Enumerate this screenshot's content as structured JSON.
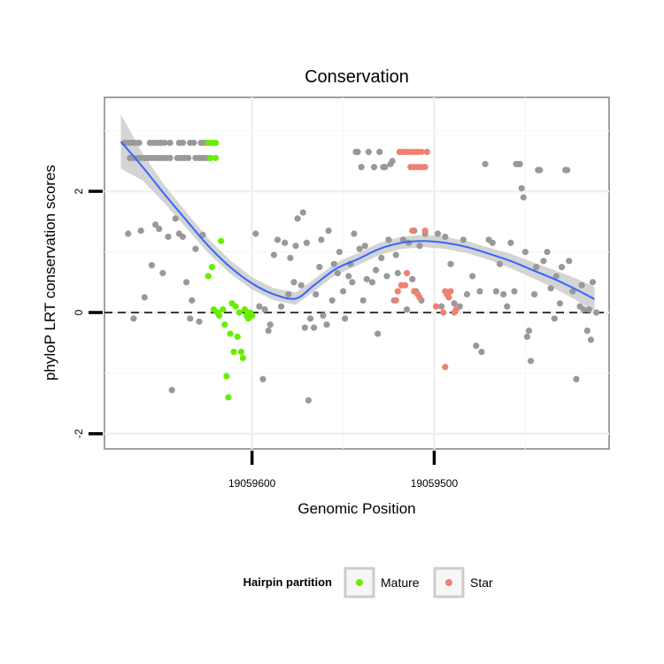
{
  "chart_data": {
    "type": "scatter",
    "title": "Conservation",
    "xlabel": "Genomic Position",
    "ylabel": "phyloP LRT conservation scores",
    "x_reversed": true,
    "xlim": [
      19059681,
      19059404
    ],
    "ylim": [
      -2.25,
      3.55
    ],
    "x_ticks": [
      19059600,
      19059500
    ],
    "x_tick_labels": [
      "19059600",
      "19059500"
    ],
    "y_ticks": [
      -2,
      0,
      2
    ],
    "y_tick_labels": [
      "-2",
      "0",
      "2"
    ],
    "reference_line": {
      "y": 0,
      "style": "dashed"
    },
    "grid": true,
    "legend": {
      "title": "Hairpin partition",
      "placement": "bottom",
      "entries": [
        {
          "label": "Mature",
          "color": "#66ee00"
        },
        {
          "label": "Star",
          "color": "#f08070"
        }
      ]
    },
    "colors": {
      "other": "#999999",
      "Mature": "#66ee00",
      "Star": "#f08070",
      "trend": "#3366ff",
      "band": "#cccccc"
    },
    "series": [
      {
        "group": "other",
        "points": [
          [
            19059670,
            2.8
          ],
          [
            19059668,
            2.8
          ],
          [
            19059666,
            2.8
          ],
          [
            19059664,
            2.8
          ],
          [
            19059662,
            2.8
          ],
          [
            19059656,
            2.8
          ],
          [
            19059654,
            2.8
          ],
          [
            19059652,
            2.8
          ],
          [
            19059650,
            2.8
          ],
          [
            19059648,
            2.8
          ],
          [
            19059645,
            2.8
          ],
          [
            19059640,
            2.8
          ],
          [
            19059638,
            2.8
          ],
          [
            19059634,
            2.8
          ],
          [
            19059632,
            2.8
          ],
          [
            19059628,
            2.8
          ],
          [
            19059626,
            2.8
          ],
          [
            19059624,
            2.8
          ],
          [
            19059667,
            2.55
          ],
          [
            19059665,
            2.55
          ],
          [
            19059663,
            2.55
          ],
          [
            19059661,
            2.55
          ],
          [
            19059659,
            2.55
          ],
          [
            19059657,
            2.55
          ],
          [
            19059655,
            2.55
          ],
          [
            19059653,
            2.55
          ],
          [
            19059651,
            2.55
          ],
          [
            19059649,
            2.55
          ],
          [
            19059647,
            2.55
          ],
          [
            19059645,
            2.55
          ],
          [
            19059641,
            2.55
          ],
          [
            19059639,
            2.55
          ],
          [
            19059637,
            2.55
          ],
          [
            19059635,
            2.55
          ],
          [
            19059631,
            2.55
          ],
          [
            19059629,
            2.55
          ],
          [
            19059627,
            2.55
          ],
          [
            19059625,
            2.55
          ],
          [
            19059623,
            2.55
          ],
          [
            19059668,
            1.3
          ],
          [
            19059665,
            -0.1
          ],
          [
            19059661,
            1.35
          ],
          [
            19059659,
            0.25
          ],
          [
            19059655,
            0.78
          ],
          [
            19059653,
            1.45
          ],
          [
            19059651,
            1.38
          ],
          [
            19059649,
            0.65
          ],
          [
            19059646,
            1.25
          ],
          [
            19059644,
            -1.28
          ],
          [
            19059642,
            1.55
          ],
          [
            19059640,
            1.3
          ],
          [
            19059638,
            1.25
          ],
          [
            19059636,
            0.5
          ],
          [
            19059634,
            -0.1
          ],
          [
            19059633,
            0.2
          ],
          [
            19059631,
            1.05
          ],
          [
            19059629,
            -0.15
          ],
          [
            19059627,
            1.28
          ],
          [
            19059598,
            1.3
          ],
          [
            19059596,
            0.1
          ],
          [
            19059594,
            -1.1
          ],
          [
            19059593,
            0.05
          ],
          [
            19059591,
            -0.3
          ],
          [
            19059590,
            -0.2
          ],
          [
            19059588,
            0.95
          ],
          [
            19059586,
            1.2
          ],
          [
            19059584,
            0.1
          ],
          [
            19059582,
            1.15
          ],
          [
            19059580,
            0.3
          ],
          [
            19059579,
            0.9
          ],
          [
            19059577,
            0.5
          ],
          [
            19059576,
            1.1
          ],
          [
            19059575,
            1.55
          ],
          [
            19059573,
            0.45
          ],
          [
            19059572,
            1.65
          ],
          [
            19059571,
            -0.25
          ],
          [
            19059570,
            1.15
          ],
          [
            19059569,
            -1.45
          ],
          [
            19059568,
            -0.1
          ],
          [
            19059566,
            -0.25
          ],
          [
            19059565,
            0.3
          ],
          [
            19059563,
            0.75
          ],
          [
            19059562,
            1.2
          ],
          [
            19059561,
            -0.05
          ],
          [
            19059559,
            -0.2
          ],
          [
            19059558,
            1.35
          ],
          [
            19059556,
            0.2
          ],
          [
            19059555,
            0.8
          ],
          [
            19059553,
            0.65
          ],
          [
            19059552,
            1.0
          ],
          [
            19059550,
            0.35
          ],
          [
            19059549,
            -0.1
          ],
          [
            19059547,
            0.6
          ],
          [
            19059546,
            0.8
          ],
          [
            19059545,
            0.5
          ],
          [
            19059544,
            1.3
          ],
          [
            19059543,
            2.65
          ],
          [
            19059542,
            2.65
          ],
          [
            19059541,
            1.05
          ],
          [
            19059540,
            2.4
          ],
          [
            19059539,
            0.2
          ],
          [
            19059538,
            1.1
          ],
          [
            19059537,
            0.55
          ],
          [
            19059536,
            2.65
          ],
          [
            19059534,
            0.5
          ],
          [
            19059533,
            2.4
          ],
          [
            19059532,
            0.7
          ],
          [
            19059531,
            -0.35
          ],
          [
            19059530,
            2.65
          ],
          [
            19059529,
            0.9
          ],
          [
            19059528,
            2.4
          ],
          [
            19059527,
            2.4
          ],
          [
            19059526,
            0.6
          ],
          [
            19059525,
            1.2
          ],
          [
            19059524,
            2.45
          ],
          [
            19059523,
            2.5
          ],
          [
            19059522,
            0.2
          ],
          [
            19059521,
            0.95
          ],
          [
            19059520,
            0.65
          ],
          [
            19059518,
            0.45
          ],
          [
            19059517,
            1.2
          ],
          [
            19059515,
            0.05
          ],
          [
            19059514,
            1.15
          ],
          [
            19059512,
            0.55
          ],
          [
            19059511,
            1.35
          ],
          [
            19059510,
            0.35
          ],
          [
            19059508,
            1.1
          ],
          [
            19059507,
            0.2
          ],
          [
            19059505,
            1.3
          ],
          [
            19059498,
            1.3
          ],
          [
            19059496,
            0.1
          ],
          [
            19059494,
            1.25
          ],
          [
            19059491,
            0.8
          ],
          [
            19059489,
            0.15
          ],
          [
            19059486,
            0.1
          ],
          [
            19059484,
            1.2
          ],
          [
            19059482,
            0.3
          ],
          [
            19059479,
            0.6
          ],
          [
            19059477,
            -0.55
          ],
          [
            19059475,
            0.35
          ],
          [
            19059474,
            -0.65
          ],
          [
            19059472,
            2.45
          ],
          [
            19059470,
            1.2
          ],
          [
            19059468,
            1.15
          ],
          [
            19059466,
            0.35
          ],
          [
            19059464,
            0.8
          ],
          [
            19059462,
            0.3
          ],
          [
            19059460,
            0.1
          ],
          [
            19059458,
            1.15
          ],
          [
            19059456,
            0.35
          ],
          [
            19059455,
            2.45
          ],
          [
            19059454,
            2.45
          ],
          [
            19059453,
            2.45
          ],
          [
            19059452,
            2.05
          ],
          [
            19059451,
            1.9
          ],
          [
            19059450,
            1.0
          ],
          [
            19059449,
            -0.4
          ],
          [
            19059448,
            -0.3
          ],
          [
            19059447,
            -0.8
          ],
          [
            19059445,
            0.3
          ],
          [
            19059444,
            0.75
          ],
          [
            19059443,
            2.35
          ],
          [
            19059442,
            2.35
          ],
          [
            19059440,
            0.85
          ],
          [
            19059438,
            1.0
          ],
          [
            19059436,
            0.4
          ],
          [
            19059434,
            -0.1
          ],
          [
            19059433,
            0.6
          ],
          [
            19059431,
            0.15
          ],
          [
            19059430,
            0.75
          ],
          [
            19059428,
            2.35
          ],
          [
            19059427,
            2.35
          ],
          [
            19059426,
            0.85
          ],
          [
            19059424,
            0.35
          ],
          [
            19059422,
            -1.1
          ],
          [
            19059420,
            0.1
          ],
          [
            19059419,
            0.45
          ],
          [
            19059418,
            0.05
          ],
          [
            19059416,
            -0.3
          ],
          [
            19059415,
            0.05
          ],
          [
            19059414,
            -0.45
          ],
          [
            19059413,
            0.5
          ],
          [
            19059411,
            0.0
          ]
        ]
      },
      {
        "group": "Mature",
        "points": [
          [
            19059624,
            2.8
          ],
          [
            19059622,
            2.8
          ],
          [
            19059620,
            2.8
          ],
          [
            19059623,
            2.55
          ],
          [
            19059620,
            2.55
          ],
          [
            19059624,
            0.6
          ],
          [
            19059622,
            0.75
          ],
          [
            19059621,
            0.05
          ],
          [
            19059619,
            0.0
          ],
          [
            19059617,
            1.18
          ],
          [
            19059618,
            -0.05
          ],
          [
            19059616,
            0.05
          ],
          [
            19059615,
            -0.2
          ],
          [
            19059614,
            -1.05
          ],
          [
            19059613,
            -1.4
          ],
          [
            19059612,
            -0.35
          ],
          [
            19059611,
            0.15
          ],
          [
            19059610,
            -0.65
          ],
          [
            19059609,
            0.1
          ],
          [
            19059608,
            -0.4
          ],
          [
            19059607,
            0.0
          ],
          [
            19059606,
            -0.65
          ],
          [
            19059605,
            -0.75
          ],
          [
            19059604,
            0.05
          ],
          [
            19059603,
            -0.05
          ],
          [
            19059602,
            -0.1
          ],
          [
            19059601,
            0.0
          ],
          [
            19059600,
            -0.05
          ]
        ]
      },
      {
        "group": "Star",
        "points": [
          [
            19059519,
            2.65
          ],
          [
            19059517,
            2.65
          ],
          [
            19059515,
            2.65
          ],
          [
            19059513,
            2.65
          ],
          [
            19059511,
            2.65
          ],
          [
            19059509,
            2.65
          ],
          [
            19059507,
            2.65
          ],
          [
            19059504,
            2.65
          ],
          [
            19059513,
            2.4
          ],
          [
            19059511,
            2.4
          ],
          [
            19059509,
            2.4
          ],
          [
            19059507,
            2.4
          ],
          [
            19059505,
            2.4
          ],
          [
            19059512,
            1.35
          ],
          [
            19059505,
            1.35
          ],
          [
            19059520,
            0.35
          ],
          [
            19059518,
            0.45
          ],
          [
            19059516,
            0.45
          ],
          [
            19059515,
            0.65
          ],
          [
            19059521,
            0.2
          ],
          [
            19059511,
            0.35
          ],
          [
            19059509,
            0.3
          ],
          [
            19059508,
            0.25
          ],
          [
            19059499,
            0.1
          ],
          [
            19059495,
            0.0
          ],
          [
            19059494,
            0.35
          ],
          [
            19059493,
            0.3
          ],
          [
            19059492,
            0.25
          ],
          [
            19059491,
            0.35
          ],
          [
            19059489,
            0.0
          ],
          [
            19059488,
            0.05
          ],
          [
            19059494,
            -0.9
          ]
        ]
      }
    ],
    "trend_line": {
      "x": [
        19059672,
        19059660,
        19059648,
        19059636,
        19059624,
        19059612,
        19059600,
        19059588,
        19059576,
        19059566,
        19059554,
        19059542,
        19059530,
        19059518,
        19059506,
        19059494,
        19059482,
        19059470,
        19059458,
        19059446,
        19059434,
        19059422,
        19059412
      ],
      "y": [
        2.82,
        2.4,
        1.95,
        1.52,
        1.1,
        0.75,
        0.48,
        0.3,
        0.23,
        0.45,
        0.72,
        0.88,
        1.05,
        1.15,
        1.18,
        1.15,
        1.08,
        0.97,
        0.85,
        0.7,
        0.55,
        0.38,
        0.22
      ],
      "band": [
        0.45,
        0.22,
        0.15,
        0.13,
        0.12,
        0.11,
        0.1,
        0.1,
        0.1,
        0.1,
        0.1,
        0.1,
        0.1,
        0.1,
        0.1,
        0.1,
        0.1,
        0.1,
        0.12,
        0.13,
        0.15,
        0.18,
        0.2
      ]
    }
  }
}
